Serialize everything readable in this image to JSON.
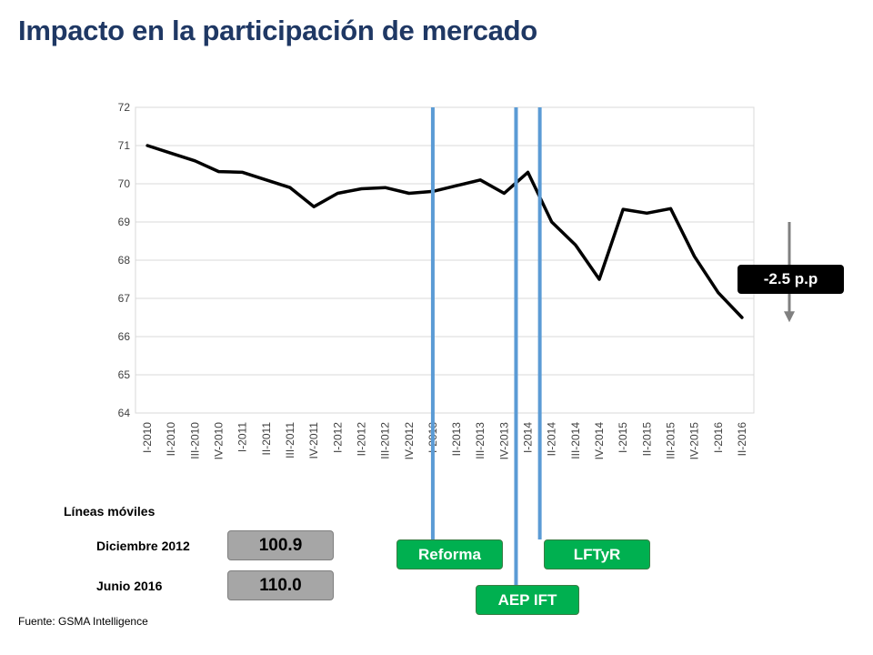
{
  "header": {
    "title": "Impacto en la participación de mercado"
  },
  "chart_data": {
    "type": "line",
    "title": "",
    "xlabel": "",
    "ylabel": "",
    "ylim": [
      64,
      72
    ],
    "yticks": [
      64,
      65,
      66,
      67,
      68,
      69,
      70,
      71,
      72
    ],
    "grid": true,
    "categories": [
      "I-2010",
      "II-2010",
      "III-2010",
      "IV-2010",
      "I-2011",
      "II-2011",
      "III-2011",
      "IV-2011",
      "I-2012",
      "II-2012",
      "III-2012",
      "IV-2012",
      "I-2013",
      "II-2013",
      "III-2013",
      "IV-2013",
      "I-2014",
      "II-2014",
      "III-2014",
      "IV-2014",
      "I-2015",
      "II-2015",
      "III-2015",
      "IV-2015",
      "I-2016",
      "II-2016"
    ],
    "series": [
      {
        "name": "",
        "color": "#000000",
        "values": [
          71.0,
          70.8,
          70.6,
          70.32,
          70.3,
          70.1,
          69.9,
          69.4,
          69.75,
          69.87,
          69.9,
          69.75,
          69.8,
          69.95,
          70.1,
          69.75,
          70.3,
          69.0,
          68.4,
          67.5,
          69.33,
          69.23,
          69.35,
          68.1,
          67.15,
          66.5
        ]
      }
    ],
    "events": [
      {
        "label": "Reforma",
        "x": 12.5,
        "line_color": "#5b9bd5"
      },
      {
        "label": "AEP IFT",
        "x": 16.0,
        "line_color": "#5b9bd5"
      },
      {
        "label": "LFTyR",
        "x": 17.0,
        "line_color": "#5b9bd5"
      }
    ],
    "annotation": {
      "label": "-2.5 p.p",
      "from": 69.0,
      "to": 66.4,
      "arrow_color": "#808080"
    }
  },
  "mobile_lines": {
    "heading": "Líneas móviles",
    "rows": [
      {
        "label": "Diciembre 2012",
        "value": "100.9"
      },
      {
        "label": "Junio 2016",
        "value": "110.0"
      }
    ]
  },
  "source": "Fuente: GSMA Intelligence",
  "colors": {
    "title": "#1f3864",
    "event_badge": "#00b050",
    "event_line": "#5b9bd5"
  }
}
